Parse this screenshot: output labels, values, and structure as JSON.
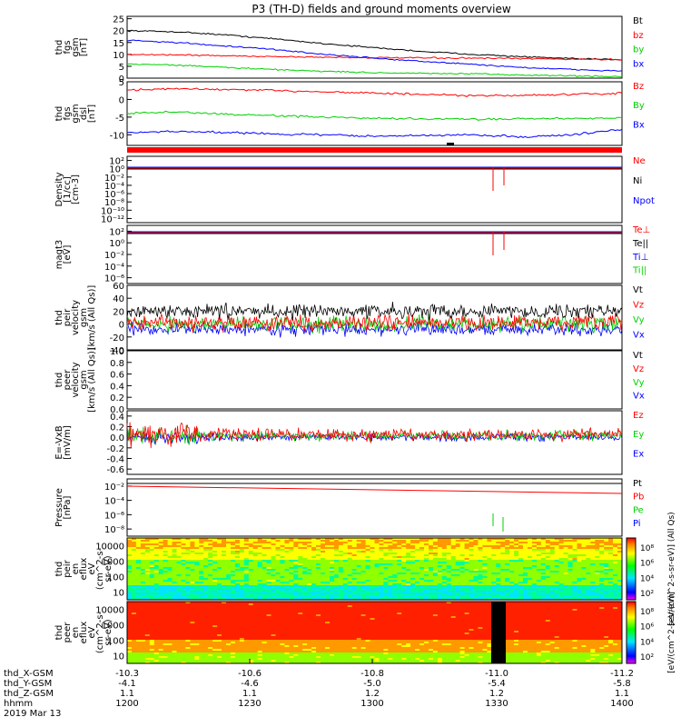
{
  "title": "P3 (TH-D) fields and ground moments overview",
  "colors": {
    "black": "#000000",
    "red": "#ff0000",
    "green": "#00d000",
    "blue": "#0000ff"
  },
  "chart_data": [
    {
      "type": "line",
      "id": "fgs",
      "ylabel": [
        "thd",
        "fgs",
        "gsm",
        "[nT]"
      ],
      "ylim": [
        0,
        26
      ],
      "ticks": [
        "0",
        "5",
        "10",
        "15",
        "20",
        "25"
      ],
      "tick_values": [
        0,
        5,
        10,
        15,
        20,
        25
      ],
      "legend": [
        "Bt",
        "bz",
        "by",
        "bx"
      ],
      "series": [
        {
          "name": "Bt",
          "values": [
            20,
            19.5,
            18.2,
            16.5,
            14.5,
            12.8,
            11.2,
            10,
            9,
            8.2,
            7.8
          ]
        },
        {
          "name": "bz",
          "values": [
            10,
            9.8,
            9.4,
            9.1,
            8.8,
            8.6,
            8.5,
            8.4,
            8.2,
            8,
            7.8
          ]
        },
        {
          "name": "by",
          "values": [
            6,
            5.5,
            4.5,
            3.6,
            2.9,
            2.3,
            2,
            1.8,
            1.3,
            1,
            0.6
          ]
        },
        {
          "name": "bx",
          "values": [
            16,
            15,
            13.5,
            12,
            10,
            8.4,
            7,
            5.8,
            4.5,
            3.6,
            3
          ]
        }
      ]
    },
    {
      "type": "line",
      "id": "fgs_dsl",
      "ylabel": [
        "thd",
        "fgs",
        "gsm",
        "dsl",
        "[nT]"
      ],
      "ylim": [
        -13,
        5
      ],
      "ticks": [
        "-10",
        "-5",
        "0",
        "5"
      ],
      "tick_values": [
        -10,
        -5,
        0,
        5
      ],
      "legend": [
        "Bz",
        "By",
        "Bx"
      ],
      "series": [
        {
          "name": "Bz",
          "values": [
            2.7,
            3,
            2.8,
            2.5,
            2.2,
            1.8,
            1.4,
            1,
            1.2,
            1.4,
            1.8
          ]
        },
        {
          "name": "By",
          "values": [
            -4,
            -3.5,
            -4.2,
            -4.6,
            -5,
            -5.4,
            -5.5,
            -5.6,
            -5.4,
            -5.4,
            -5.1
          ]
        },
        {
          "name": "Bx",
          "values": [
            -9.5,
            -9,
            -9.3,
            -9.8,
            -10,
            -10.4,
            -10.2,
            -10,
            -10.6,
            -10,
            -8.4
          ]
        }
      ]
    },
    {
      "type": "line",
      "id": "density",
      "ylabel": [
        "Density",
        "[1/cc]",
        "[cm-3]"
      ],
      "scale": "log",
      "ticks": [
        "10⁻¹²",
        "10⁻¹⁰",
        "10⁻⁸",
        "10⁻⁶",
        "10⁻⁴",
        "10⁻²",
        "10⁰",
        "10²"
      ],
      "legend": [
        "Ne",
        "Ni",
        "Npot"
      ]
    },
    {
      "type": "line",
      "id": "temperature",
      "ylabel": [
        "magt3",
        "[eV]"
      ],
      "scale": "log",
      "ticks": [
        "10⁻⁶",
        "10⁻⁴",
        "10⁻²",
        "10⁰",
        "10²"
      ],
      "legend": [
        "Te⊥",
        "Te||",
        "Ti⊥",
        "Ti||"
      ]
    },
    {
      "type": "line",
      "id": "peir_vel",
      "ylabel": [
        "thd",
        "peir",
        "velocity",
        "gsm",
        "[km/s (All Qs)]"
      ],
      "ylim": [
        -40,
        60
      ],
      "ticks": [
        "-40",
        "-20",
        "0",
        "20",
        "40",
        "60"
      ],
      "tick_values": [
        -40,
        -20,
        0,
        20,
        40,
        60
      ],
      "legend": [
        "Vt",
        "Vz",
        "Vy",
        "Vx"
      ]
    },
    {
      "type": "line",
      "id": "peer_vel",
      "ylabel": [
        "thd",
        "peer",
        "velocity",
        "gsm",
        "[km/s (All Qs)]"
      ],
      "ylim": [
        0,
        1
      ],
      "ticks": [
        "0.0",
        "0.2",
        "0.4",
        "0.6",
        "0.8",
        "1.0"
      ],
      "tick_values": [
        0,
        0.2,
        0.4,
        0.6,
        0.8,
        1
      ],
      "legend": [
        "Vt",
        "Vz",
        "Vy",
        "Vx"
      ]
    },
    {
      "type": "line",
      "id": "efield",
      "ylabel": [
        "E=-VxB",
        "[mV/m]"
      ],
      "ylim": [
        -0.7,
        0.5
      ],
      "ticks": [
        "-0.6",
        "-0.4",
        "-0.2",
        "0.0",
        "0.2",
        "0.4"
      ],
      "tick_values": [
        -0.6,
        -0.4,
        -0.2,
        0,
        0.2,
        0.4
      ],
      "legend": [
        "Ez",
        "Ey",
        "Ex"
      ]
    },
    {
      "type": "line",
      "id": "pressure",
      "ylabel": [
        "Pressure",
        "[nPa]"
      ],
      "scale": "log",
      "ticks": [
        "10⁻⁸",
        "10⁻⁶",
        "10⁻⁴",
        "10⁻²"
      ],
      "legend": [
        "Pt",
        "Pb",
        "Pe",
        "Pi"
      ]
    },
    {
      "type": "heatmap",
      "id": "peir_en",
      "ylabel": [
        "thd",
        "peir",
        "en",
        "eflux",
        "eV",
        "(cm^2-s-",
        "sr-eV)"
      ],
      "scale": "log",
      "ticks": [
        "10",
        "100",
        "1000",
        "10000"
      ],
      "colorbar_ticks": [
        "10⁸",
        "10⁶",
        "10⁴",
        "10²"
      ],
      "colorbar_label": "[eV/(cm^2-s-sr-eV)] (All Qs)"
    },
    {
      "type": "heatmap",
      "id": "peer_en",
      "ylabel": [
        "thd",
        "peer",
        "en",
        "eflux",
        "eV",
        "(cm^2-s-",
        "sr-eV)"
      ],
      "scale": "log",
      "ticks": [
        "10",
        "100",
        "1000",
        "10000"
      ],
      "colorbar_ticks": [
        "10⁸",
        "10⁶",
        "10⁴",
        "10²"
      ],
      "colorbar_label": "[eV/(cm^2-s-sr-eV)]"
    }
  ],
  "x_axis": {
    "rows": [
      {
        "label": "thd_X-GSM",
        "values": [
          "-10.3",
          "-10.6",
          "-10.8",
          "-11.0",
          "-11.2"
        ]
      },
      {
        "label": "thd_Y-GSM",
        "values": [
          "-4.1",
          "-4.6",
          "-5.0",
          "-5.4",
          "-5.8"
        ]
      },
      {
        "label": "thd_Z-GSM",
        "values": [
          "1.1",
          "1.1",
          "1.2",
          "1.2",
          "1.1"
        ]
      },
      {
        "label": "hhmm",
        "values": [
          "1200",
          "1230",
          "1300",
          "1330",
          "1400"
        ]
      }
    ],
    "date": "2019 Mar 13"
  }
}
